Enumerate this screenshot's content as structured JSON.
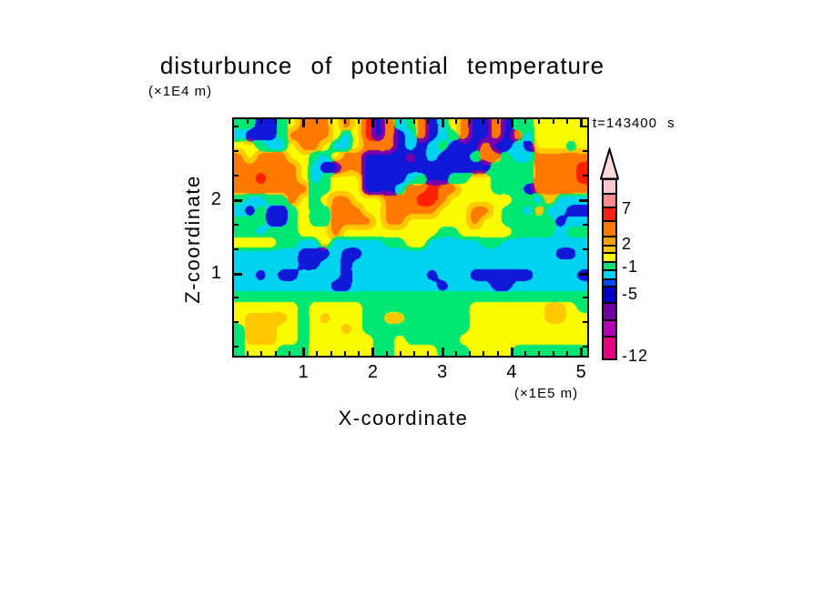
{
  "title": "disturbunce of potential temperature",
  "annotations": {
    "time_label": "t=143400 s",
    "y_units": "(×1E4 m)",
    "x_units": "(×1E5 m)"
  },
  "axes": {
    "x": {
      "label": "X-coordinate",
      "min": 0,
      "max": 5.09,
      "major_ticks": [
        1,
        2,
        3,
        4,
        5
      ],
      "tick_labels": [
        "1",
        "2",
        "3",
        "4",
        "5"
      ],
      "minor_tick_step": 0.2
    },
    "y": {
      "label": "Z-coordinate",
      "min": -0.12,
      "max": 3.1,
      "major_ticks": [
        1,
        2
      ],
      "tick_labels": [
        "1",
        "2"
      ],
      "minor_tick_step": 0.33333
    }
  },
  "colorbar": {
    "arrow_color": "#FFD9DE",
    "segments": [
      {
        "color": "#FFC8CD",
        "height": 16
      },
      {
        "color": "#FF8C8C",
        "height": 15
      },
      {
        "color": "#FF1E14",
        "height": 15
      },
      {
        "color": "#FF7800",
        "height": 17
      },
      {
        "color": "#FFA000",
        "height": 10
      },
      {
        "color": "#FFC800",
        "height": 8
      },
      {
        "color": "#FAFA00",
        "height": 10
      },
      {
        "color": "#00E673",
        "height": 9
      },
      {
        "color": "#00D2F0",
        "height": 10
      },
      {
        "color": "#0046FA",
        "height": 8
      },
      {
        "color": "#0000C8",
        "height": 18
      },
      {
        "color": "#6E00A0",
        "height": 19
      },
      {
        "color": "#B400B4",
        "height": 18
      },
      {
        "color": "#E6007D",
        "height": 23
      }
    ],
    "labels": [
      {
        "text": "7",
        "y": 31
      },
      {
        "text": "2",
        "y": 70
      },
      {
        "text": "-1",
        "y": 95
      },
      {
        "text": "-5",
        "y": 125
      },
      {
        "text": "-12",
        "y": 193
      }
    ]
  },
  "chart_data": {
    "type": "heatmap",
    "title": "disturbunce of potential temperature",
    "time_label": "t=143400 s",
    "xlabel": "X-coordinate",
    "x_units": "×1E5 m",
    "x_range": [
      0,
      5.09
    ],
    "zlabel": "Z-coordinate",
    "z_units": "×1E4 m",
    "z_range": [
      -0.12,
      3.1
    ],
    "colorbar_tick_values": [
      7,
      2,
      -1,
      -5,
      -12
    ],
    "legend_position": "right",
    "grid_cols": 33,
    "grid_rows": 22,
    "palette": {
      "R": "#FF2000",
      "O": "#FF7800",
      "A": "#FFC800",
      "Y": "#FAFA00",
      "G": "#00E673",
      "C": "#00D2F0",
      "D": "#1018D8",
      "P": "#7800AA"
    },
    "grid": [
      "GGDDGYOOOYOYRDOCGODCYODDODGGYYYYY",
      "CDDDGOOOOYCYRDODCODCGODDODOCYYYYY",
      "YYGCCYOOYCCYOOODCDCGDDDODDCDYYYGY",
      "OYOOOYYGCYOODDDDPDCDDDGOOGCCOOOOO",
      "OOOOOOYCDDOODDDDDDDDDDDDGGGGOOOOR",
      "OOROOOYCGYYYDDDDCGDDGGYYGGGGOOOOR",
      "OOOOOOOGGYYYDDDCOOROOYYYGGGDOOOOO",
      "GCCGGOYGYOOYYYOOORROYYYYYYGGCACCC",
      "CDGDDGYGGOOOYYOOOOOYYYOOYGGCACCDD",
      "GGGDDGYGGOOOOYOOYYYYYYOYYGGGGGDCC",
      "GGCGGGYYYOYYYYYYYYYGGYYYYYGGGGCGG",
      "YYYYGGCCYCCCCCGGYYCCCCCGGCCCCCCCC",
      "CCCCCCDDDCDDCCCCCCCCCCCCCCCCCCDDC",
      "CCCCCCDDCCDCCCCCCCCCCCCCCCCCCCCCC",
      "CCDCDDCCCCDCCCCCCCDCCCDDDDDDCCCCD",
      "CCCCCCCCCDDCCCCCCCCDCCCCDDCCCCCCC",
      "GGGGGGGGGGGGGGGGGGGGGGGGGGGGGGGGG",
      "YYYYYYGYYYYYGGGGGGGGGGYYYYYYYAAYG",
      "YAAAAYGYAYYYGGAAGGGGGGYYYYYYYAAYY",
      "GAAAYYGYYYAYGGGGGGGGGGYYYYYYYYYYY",
      "GAAAYYGYYYYYYGGYGGGGGYYYYYYYYYYYY",
      "GYYYGGGYYYYYYGGYYYYGGGYYYYGGGGGGG"
    ]
  }
}
